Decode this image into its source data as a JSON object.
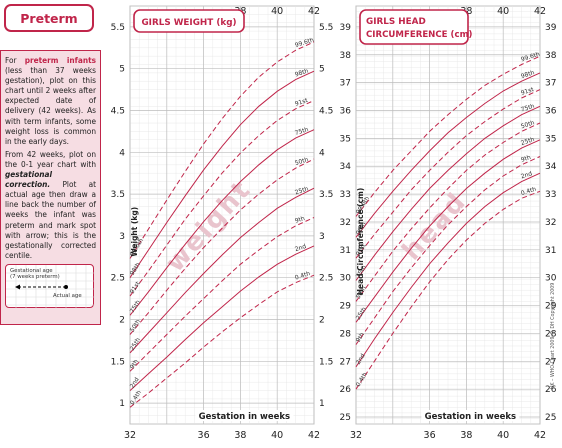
{
  "sidebar": {
    "title": "Preterm",
    "para1_lead": "For",
    "para1_bold": "preterm infants",
    "para1_rest": "(less than 37 weeks gestation), plot on this chart until 2 weeks after expected date of delivery (42 weeks). As with term infants, some weight loss is common in the early days.",
    "para2_start": "From 42 weeks, plot on the 0-1 year chart with",
    "para2_bold": "gestational correction.",
    "para2_rest": "Plot at actual age then draw a line back the number of weeks the infant was preterm and mark spot with arrow; this is the gestationally corrected centile.",
    "inset_label1": "Gestational age",
    "inset_label2": "(7 weeks preterm)",
    "inset_label3": "Actual age"
  },
  "colors": {
    "accent": "#c0254a",
    "grid": "#bdbdbd",
    "panel_bg": "#f6dde3",
    "watermark": "#e9c4cd"
  },
  "chart_data": [
    {
      "type": "line",
      "title": "GIRLS WEIGHT (kg)",
      "xlabel": "Gestation in weeks",
      "ylabel": "Weight (kg)",
      "watermark": "weight",
      "xlim": [
        32,
        42
      ],
      "ylim": [
        0.75,
        5.75
      ],
      "x_ticks": [
        32,
        34,
        36,
        38,
        40,
        42
      ],
      "x_ticks_bottom": [
        "32",
        "",
        "36",
        "38",
        "40",
        "42"
      ],
      "x_ticks_top": [
        "",
        "",
        "",
        "38",
        "40",
        "42"
      ],
      "y_ticks": [
        1,
        1.5,
        2,
        2.5,
        3,
        3.5,
        4,
        4.5,
        5,
        5.5
      ],
      "y_tick_labels": [
        "1",
        "1.5",
        "2",
        "2.5",
        "3",
        "3.5",
        "4",
        "4.5",
        "5",
        "5.5"
      ],
      "series": [
        {
          "name": "0.4th",
          "dashed": true,
          "x": [
            32,
            33,
            34,
            35,
            36,
            37,
            38,
            39,
            40,
            41,
            42
          ],
          "values": [
            0.95,
            1.12,
            1.3,
            1.48,
            1.67,
            1.85,
            2.02,
            2.18,
            2.33,
            2.44,
            2.53
          ]
        },
        {
          "name": "2nd",
          "dashed": false,
          "x": [
            32,
            33,
            34,
            35,
            36,
            37,
            38,
            39,
            40,
            41,
            42
          ],
          "values": [
            1.15,
            1.35,
            1.55,
            1.76,
            1.96,
            2.15,
            2.34,
            2.51,
            2.66,
            2.78,
            2.88
          ]
        },
        {
          "name": "9th",
          "dashed": true,
          "x": [
            32,
            33,
            34,
            35,
            36,
            37,
            38,
            39,
            40,
            41,
            42
          ],
          "values": [
            1.38,
            1.6,
            1.82,
            2.04,
            2.25,
            2.46,
            2.66,
            2.83,
            2.99,
            3.12,
            3.22
          ]
        },
        {
          "name": "25th",
          "dashed": false,
          "x": [
            32,
            33,
            34,
            35,
            36,
            37,
            38,
            39,
            40,
            41,
            42
          ],
          "values": [
            1.6,
            1.84,
            2.08,
            2.32,
            2.55,
            2.77,
            2.98,
            3.16,
            3.33,
            3.46,
            3.57
          ]
        },
        {
          "name": "50th",
          "dashed": true,
          "x": [
            32,
            33,
            34,
            35,
            36,
            37,
            38,
            39,
            40,
            41,
            42
          ],
          "values": [
            1.82,
            2.08,
            2.35,
            2.61,
            2.86,
            3.09,
            3.31,
            3.5,
            3.67,
            3.81,
            3.92
          ]
        },
        {
          "name": "75th",
          "dashed": false,
          "x": [
            32,
            33,
            34,
            35,
            36,
            37,
            38,
            39,
            40,
            41,
            42
          ],
          "values": [
            2.05,
            2.33,
            2.62,
            2.9,
            3.17,
            3.42,
            3.65,
            3.85,
            4.03,
            4.17,
            4.27
          ]
        },
        {
          "name": "91st",
          "dashed": true,
          "x": [
            32,
            33,
            34,
            35,
            36,
            37,
            38,
            39,
            40,
            41,
            42
          ],
          "values": [
            2.28,
            2.58,
            2.89,
            3.2,
            3.48,
            3.75,
            3.99,
            4.2,
            4.38,
            4.52,
            4.62
          ]
        },
        {
          "name": "98th",
          "dashed": false,
          "x": [
            32,
            33,
            34,
            35,
            36,
            37,
            38,
            39,
            40,
            41,
            42
          ],
          "values": [
            2.5,
            2.83,
            3.16,
            3.48,
            3.79,
            4.07,
            4.33,
            4.55,
            4.73,
            4.87,
            4.97
          ]
        },
        {
          "name": "99.6th",
          "dashed": true,
          "x": [
            32,
            33,
            34,
            35,
            36,
            37,
            38,
            39,
            40,
            41,
            42
          ],
          "values": [
            2.73,
            3.08,
            3.43,
            3.77,
            4.1,
            4.4,
            4.67,
            4.9,
            5.08,
            5.22,
            5.32
          ]
        }
      ]
    },
    {
      "type": "line",
      "title_line1": "GIRLS HEAD",
      "title_line2": "CIRCUMFERENCE (cm)",
      "xlabel": "Gestation in weeks",
      "ylabel": "Head Circumference (cm)",
      "watermark": "head",
      "copyright_text": "UK – WHO Chart 2009 © DH Copyright 2009",
      "xlim": [
        32,
        42
      ],
      "ylim": [
        24.75,
        39.75
      ],
      "x_ticks": [
        32,
        34,
        36,
        38,
        40,
        42
      ],
      "x_ticks_bottom": [
        "32",
        "",
        "36",
        "38",
        "40",
        "42"
      ],
      "x_ticks_top": [
        "",
        "",
        "",
        "38",
        "40",
        "42"
      ],
      "y_ticks": [
        25,
        26,
        27,
        28,
        29,
        30,
        31,
        32,
        33,
        34,
        35,
        36,
        37,
        38,
        39
      ],
      "y_tick_labels": [
        "25",
        "26",
        "27",
        "28",
        "29",
        "30",
        "31",
        "32",
        "33",
        "34",
        "35",
        "36",
        "37",
        "38",
        "39"
      ],
      "series": [
        {
          "name": "0.4th",
          "dashed": true,
          "x": [
            32,
            33,
            34,
            35,
            36,
            37,
            38,
            39,
            40,
            41,
            42
          ],
          "values": [
            26.0,
            27.0,
            28.0,
            28.95,
            29.85,
            30.65,
            31.35,
            31.95,
            32.45,
            32.85,
            33.1
          ]
        },
        {
          "name": "2nd",
          "dashed": false,
          "x": [
            32,
            33,
            34,
            35,
            36,
            37,
            38,
            39,
            40,
            41,
            42
          ],
          "values": [
            26.8,
            27.8,
            28.75,
            29.65,
            30.5,
            31.25,
            31.95,
            32.55,
            33.05,
            33.45,
            33.75
          ]
        },
        {
          "name": "9th",
          "dashed": true,
          "x": [
            32,
            33,
            34,
            35,
            36,
            37,
            38,
            39,
            40,
            41,
            42
          ],
          "values": [
            27.6,
            28.55,
            29.5,
            30.35,
            31.15,
            31.9,
            32.55,
            33.15,
            33.65,
            34.05,
            34.35
          ]
        },
        {
          "name": "25th",
          "dashed": false,
          "x": [
            32,
            33,
            34,
            35,
            36,
            37,
            38,
            39,
            40,
            41,
            42
          ],
          "values": [
            28.4,
            29.3,
            30.2,
            31.05,
            31.85,
            32.55,
            33.2,
            33.75,
            34.25,
            34.65,
            34.95
          ]
        },
        {
          "name": "50th",
          "dashed": true,
          "x": [
            32,
            33,
            34,
            35,
            36,
            37,
            38,
            39,
            40,
            41,
            42
          ],
          "values": [
            29.15,
            30.05,
            30.95,
            31.75,
            32.5,
            33.2,
            33.85,
            34.4,
            34.85,
            35.25,
            35.55
          ]
        },
        {
          "name": "75th",
          "dashed": false,
          "x": [
            32,
            33,
            34,
            35,
            36,
            37,
            38,
            39,
            40,
            41,
            42
          ],
          "values": [
            29.9,
            30.8,
            31.65,
            32.45,
            33.2,
            33.85,
            34.45,
            35.0,
            35.45,
            35.85,
            36.15
          ]
        },
        {
          "name": "91st",
          "dashed": true,
          "x": [
            32,
            33,
            34,
            35,
            36,
            37,
            38,
            39,
            40,
            41,
            42
          ],
          "values": [
            30.7,
            31.55,
            32.35,
            33.15,
            33.85,
            34.5,
            35.1,
            35.6,
            36.05,
            36.45,
            36.75
          ]
        },
        {
          "name": "98th",
          "dashed": false,
          "x": [
            32,
            33,
            34,
            35,
            36,
            37,
            38,
            39,
            40,
            41,
            42
          ],
          "values": [
            31.45,
            32.3,
            33.1,
            33.85,
            34.55,
            35.2,
            35.75,
            36.25,
            36.7,
            37.05,
            37.35
          ]
        },
        {
          "name": "99.6th",
          "dashed": true,
          "x": [
            32,
            33,
            34,
            35,
            36,
            37,
            38,
            39,
            40,
            41,
            42
          ],
          "values": [
            32.2,
            33.05,
            33.85,
            34.55,
            35.25,
            35.85,
            36.4,
            36.9,
            37.3,
            37.65,
            37.95
          ]
        }
      ]
    }
  ]
}
